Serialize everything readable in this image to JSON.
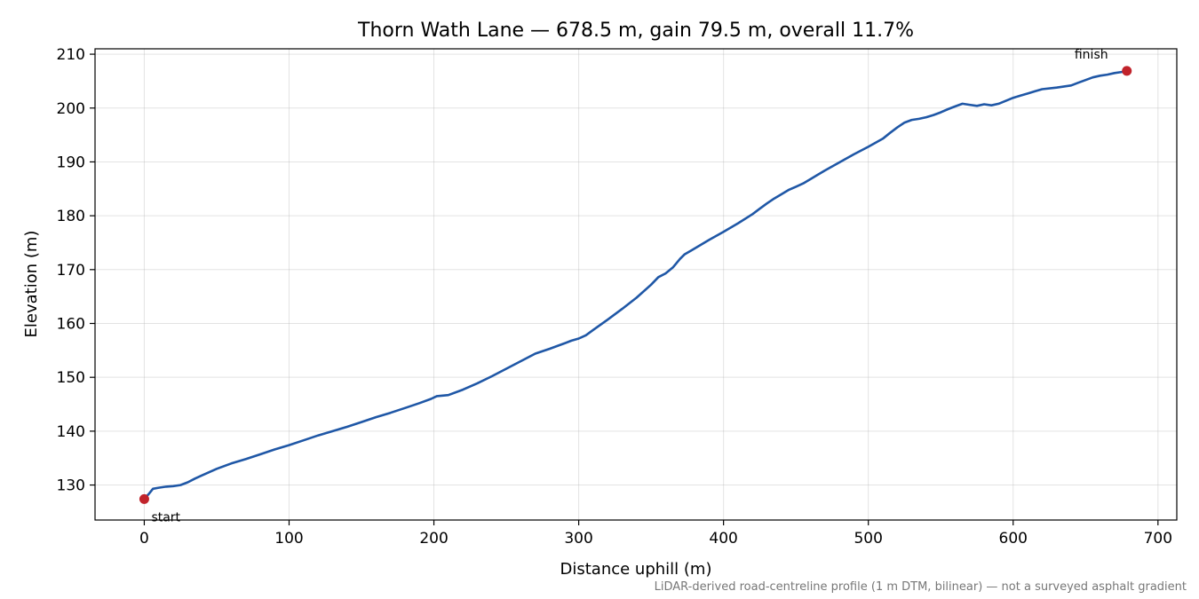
{
  "chart_data": {
    "type": "line",
    "title": "Thorn Wath Lane — 678.5 m, gain 79.5 m, overall 11.7%",
    "xlabel": "Distance uphill (m)",
    "ylabel": "Elevation (m)",
    "xlim": [
      -34,
      713
    ],
    "ylim": [
      123.5,
      211
    ],
    "xticks": [
      0,
      100,
      200,
      300,
      400,
      500,
      600,
      700
    ],
    "yticks": [
      130,
      140,
      150,
      160,
      170,
      180,
      190,
      200,
      210
    ],
    "grid": true,
    "footnote": "LiDAR-derived road-centreline profile (1 m DTM, bilinear) — not a surveyed asphalt gradient",
    "series": [
      {
        "color": "#1f57a6",
        "x": [
          0,
          3,
          6,
          10,
          15,
          20,
          25,
          30,
          35,
          40,
          50,
          60,
          70,
          80,
          90,
          100,
          110,
          120,
          130,
          140,
          150,
          160,
          170,
          180,
          190,
          198,
          202,
          210,
          220,
          230,
          240,
          250,
          260,
          270,
          280,
          285,
          290,
          295,
          300,
          305,
          310,
          320,
          330,
          340,
          350,
          355,
          360,
          365,
          370,
          373,
          378,
          390,
          400,
          410,
          420,
          425,
          430,
          435,
          440,
          445,
          450,
          455,
          460,
          465,
          470,
          480,
          490,
          500,
          510,
          515,
          520,
          525,
          530,
          535,
          540,
          545,
          550,
          555,
          560,
          565,
          570,
          575,
          580,
          585,
          590,
          600,
          605,
          610,
          615,
          620,
          630,
          640,
          645,
          650,
          655,
          660,
          665,
          670,
          675,
          678.5
        ],
        "y": [
          127.4,
          128.3,
          129.3,
          129.5,
          129.7,
          129.8,
          130.0,
          130.5,
          131.2,
          131.8,
          133.0,
          134.0,
          134.8,
          135.7,
          136.6,
          137.4,
          138.3,
          139.2,
          140.0,
          140.8,
          141.7,
          142.6,
          143.4,
          144.3,
          145.2,
          146.0,
          146.5,
          146.7,
          147.7,
          148.9,
          150.2,
          151.6,
          153.0,
          154.4,
          155.3,
          155.8,
          156.3,
          156.8,
          157.2,
          157.8,
          158.8,
          160.7,
          162.7,
          164.8,
          167.2,
          168.6,
          169.3,
          170.4,
          172.0,
          172.8,
          173.6,
          175.5,
          177.0,
          178.6,
          180.3,
          181.3,
          182.3,
          183.2,
          184.0,
          184.8,
          185.4,
          186.0,
          186.8,
          187.6,
          188.4,
          189.9,
          191.4,
          192.8,
          194.3,
          195.4,
          196.4,
          197.3,
          197.8,
          198.0,
          198.3,
          198.7,
          199.2,
          199.8,
          200.3,
          200.8,
          200.6,
          200.4,
          200.7,
          200.5,
          200.8,
          201.9,
          202.3,
          202.7,
          203.1,
          203.5,
          203.8,
          204.2,
          204.7,
          205.2,
          205.7,
          206.0,
          206.2,
          206.5,
          206.7,
          206.9
        ]
      }
    ],
    "markers": [
      {
        "x": 0,
        "y": 127.4,
        "label": "start",
        "color": "#c1232b"
      },
      {
        "x": 678.5,
        "y": 206.9,
        "label": "finish",
        "color": "#c1232b"
      }
    ]
  }
}
